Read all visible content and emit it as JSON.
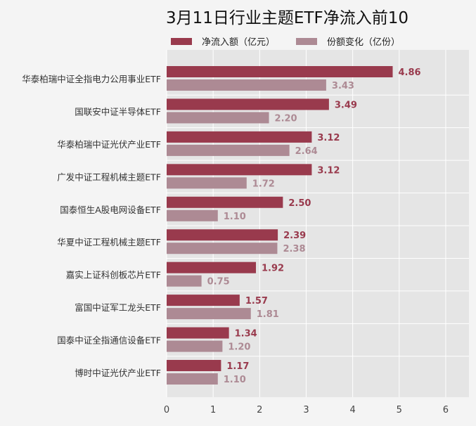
{
  "chart_data": {
    "type": "bar",
    "orientation": "horizontal",
    "title": "3月11日行业主题ETF净流入前10",
    "categories": [
      "华泰柏瑞中证全指电力公用事业ETF",
      "国联安中证半导体ETF",
      "华泰柏瑞中证光伏产业ETF",
      "广发中证工程机械主题ETF",
      "国泰恒生A股电网设备ETF",
      "华夏中证工程机械主题ETF",
      "嘉实上证科创板芯片ETF",
      "富国中证军工龙头ETF",
      "国泰中证全指通信设备ETF",
      "博时中证光伏产业ETF"
    ],
    "series": [
      {
        "name": "净流入额（亿元）",
        "color": "#993a4d",
        "values": [
          4.86,
          3.49,
          3.12,
          3.12,
          2.5,
          2.39,
          1.92,
          1.57,
          1.34,
          1.17
        ],
        "labels": [
          "4.86",
          "3.49",
          "3.12",
          "3.12",
          "2.50",
          "2.39",
          "1.92",
          "1.57",
          "1.34",
          "1.17"
        ]
      },
      {
        "name": "份额变化（亿份）",
        "color": "#ad8a94",
        "values": [
          3.43,
          2.2,
          2.64,
          1.72,
          1.1,
          2.38,
          0.75,
          1.81,
          1.2,
          1.1
        ],
        "labels": [
          "3.43",
          "2.20",
          "2.64",
          "1.72",
          "1.10",
          "2.38",
          "0.75",
          "1.81",
          "1.20",
          "1.10"
        ]
      }
    ],
    "xticks": [
      "0",
      "1",
      "2",
      "3",
      "4",
      "5",
      "6"
    ],
    "xlim": [
      0,
      6.5
    ],
    "grid": true,
    "legend": "top"
  }
}
